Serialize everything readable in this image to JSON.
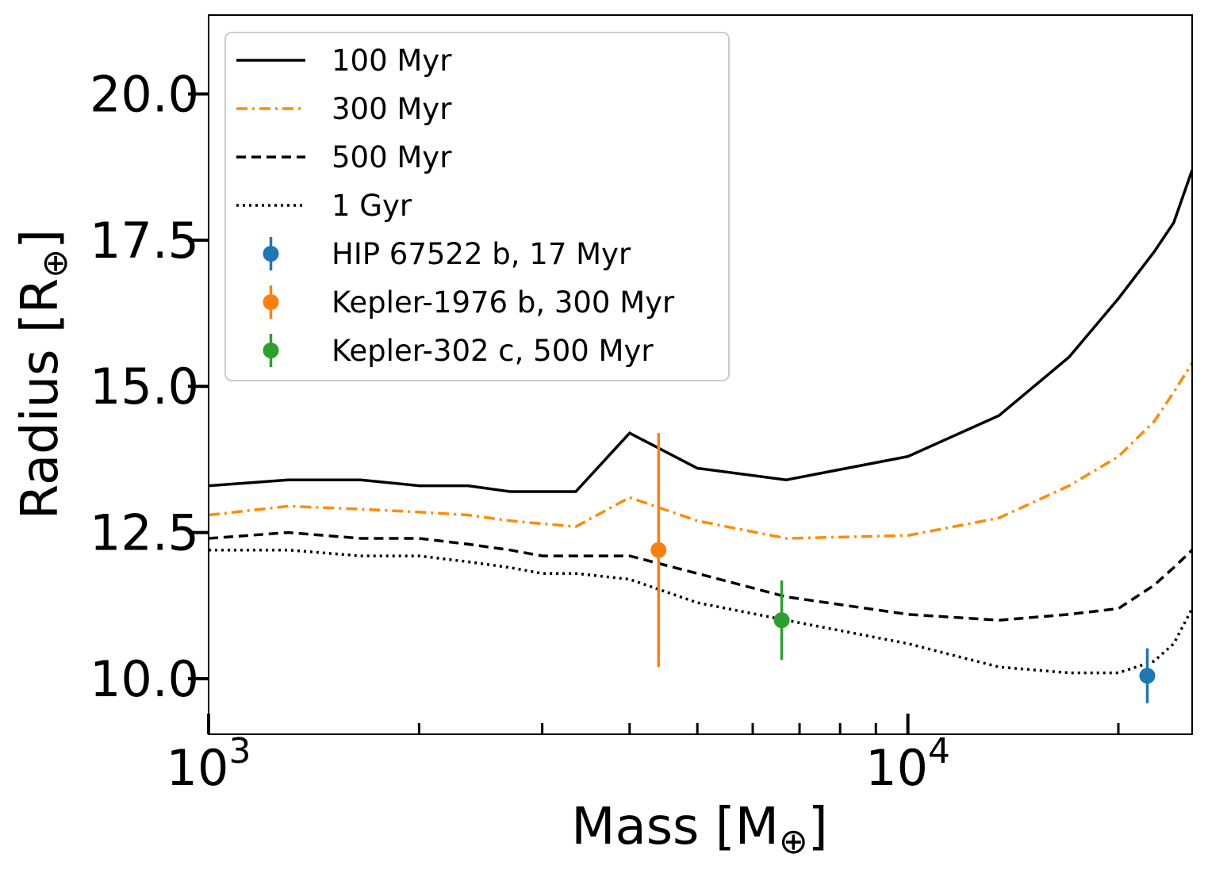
{
  "chart_data": {
    "type": "line",
    "xlabel": "Mass [M",
    "xlabel_symbol": "⊕",
    "xlabel_close": "]",
    "ylabel": "Radius [R",
    "ylabel_symbol": "⊕",
    "ylabel_close": "]",
    "x_scale": "log",
    "xlim": [
      1000,
      25500
    ],
    "ylim": [
      9.05,
      21.35
    ],
    "x_ticks": [
      {
        "value": 1000,
        "base": "10",
        "exp": "3"
      },
      {
        "value": 10000,
        "base": "10",
        "exp": "4"
      }
    ],
    "y_ticks": [
      {
        "value": 10.0,
        "label": "10.0"
      },
      {
        "value": 12.5,
        "label": "12.5"
      },
      {
        "value": 15.0,
        "label": "15.0"
      },
      {
        "value": 17.5,
        "label": "17.5"
      },
      {
        "value": 20.0,
        "label": "20.0"
      }
    ],
    "grid": false,
    "legend_position": "top-left",
    "series": [
      {
        "name": "100 Myr",
        "color": "#000000",
        "dash": "solid",
        "x": [
          1000,
          1300,
          1650,
          2000,
          2350,
          2700,
          3350,
          4000,
          5000,
          6700,
          10000,
          13500,
          17000,
          20000,
          22500,
          24000,
          25500
        ],
        "y": [
          13.3,
          13.4,
          13.4,
          13.3,
          13.3,
          13.2,
          13.2,
          14.2,
          13.6,
          13.4,
          13.8,
          14.5,
          15.5,
          16.5,
          17.3,
          17.8,
          18.7
        ]
      },
      {
        "name": "300 Myr",
        "color": "#ff8c00",
        "dash": "dashdot",
        "x": [
          1000,
          1300,
          1650,
          2000,
          2350,
          2700,
          3350,
          4000,
          5000,
          6700,
          10000,
          13500,
          17000,
          20000,
          22500,
          24000,
          25500
        ],
        "y": [
          12.8,
          12.95,
          12.9,
          12.85,
          12.8,
          12.7,
          12.6,
          13.1,
          12.7,
          12.4,
          12.45,
          12.75,
          13.3,
          13.8,
          14.4,
          14.9,
          15.4
        ]
      },
      {
        "name": "500 Myr",
        "color": "#000000",
        "dash": "dashed",
        "x": [
          1000,
          1300,
          1650,
          2000,
          2350,
          2700,
          3000,
          3350,
          4000,
          5000,
          6700,
          10000,
          13500,
          17000,
          20000,
          22500,
          24000,
          25500
        ],
        "y": [
          12.4,
          12.5,
          12.4,
          12.4,
          12.3,
          12.2,
          12.1,
          12.1,
          12.1,
          11.8,
          11.4,
          11.1,
          11.0,
          11.1,
          11.2,
          11.6,
          11.9,
          12.2
        ]
      },
      {
        "name": "1 Gyr",
        "color": "#000000",
        "dash": "dotted",
        "x": [
          1000,
          1300,
          1650,
          2000,
          2350,
          2700,
          3000,
          3350,
          4000,
          5000,
          6700,
          10000,
          13500,
          17000,
          20000,
          22500,
          24000,
          25500
        ],
        "y": [
          12.2,
          12.2,
          12.1,
          12.1,
          12.0,
          11.9,
          11.8,
          11.8,
          11.7,
          11.3,
          11.0,
          10.6,
          10.2,
          10.1,
          10.1,
          10.3,
          10.6,
          11.2
        ]
      }
    ],
    "points": [
      {
        "name": "HIP 67522 b, 17 Myr",
        "color": "#1f77b4",
        "x": 22000,
        "y": 10.05,
        "yerr": 0.47
      },
      {
        "name": "Kepler-1976 b, 300 Myr",
        "color": "#ff7f0e",
        "x": 4400,
        "y": 12.2,
        "yerr": 2.0
      },
      {
        "name": "Kepler-302 c, 500 Myr",
        "color": "#2ca02c",
        "x": 6600,
        "y": 11.0,
        "yerr": 0.68
      }
    ]
  }
}
